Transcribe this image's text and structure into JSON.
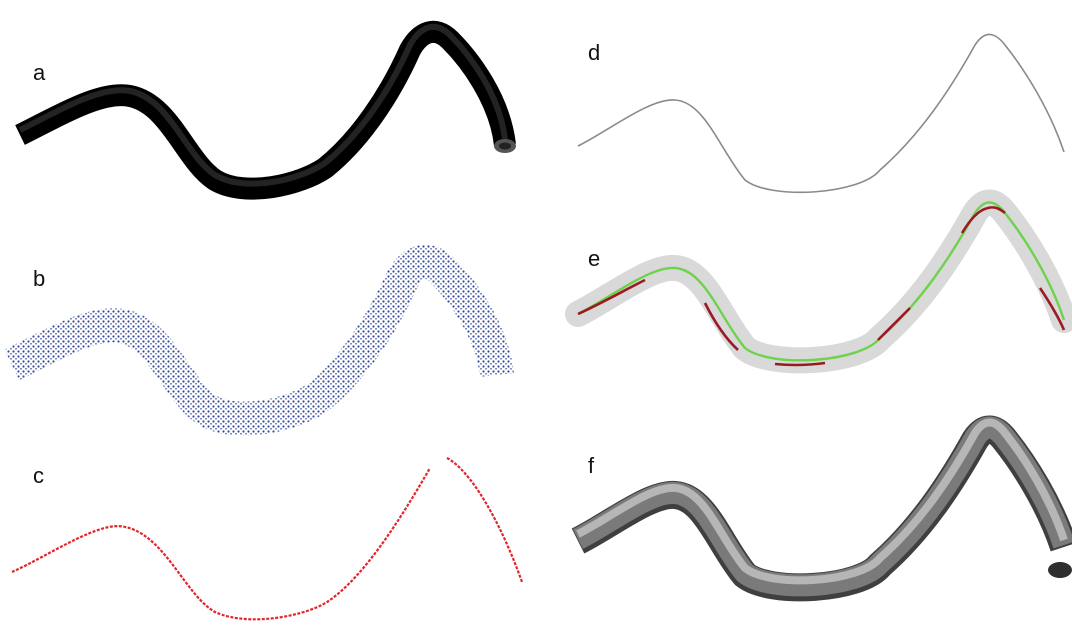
{
  "panels": [
    {
      "id": "a",
      "label": "a",
      "render": "photo-black-hose"
    },
    {
      "id": "b",
      "label": "b",
      "render": "blue-point-cloud"
    },
    {
      "id": "c",
      "label": "c",
      "render": "red-dashed-centerline"
    },
    {
      "id": "d",
      "label": "d",
      "render": "gray-thin-curve"
    },
    {
      "id": "e",
      "label": "e",
      "render": "segmented-curve-in-gray-tube"
    },
    {
      "id": "f",
      "label": "f",
      "render": "gray-3d-tube"
    }
  ],
  "colors": {
    "hose": "#111111",
    "points": "#2a3f94",
    "centerline": "#e2262b",
    "thin_curve": "#8a8a8a",
    "tube_halo": "#d9d9d9",
    "segment_green": "#6fd24c",
    "segment_red": "#9b1b23",
    "tube_dark": "#555555",
    "tube_light": "#bdbdbd"
  }
}
